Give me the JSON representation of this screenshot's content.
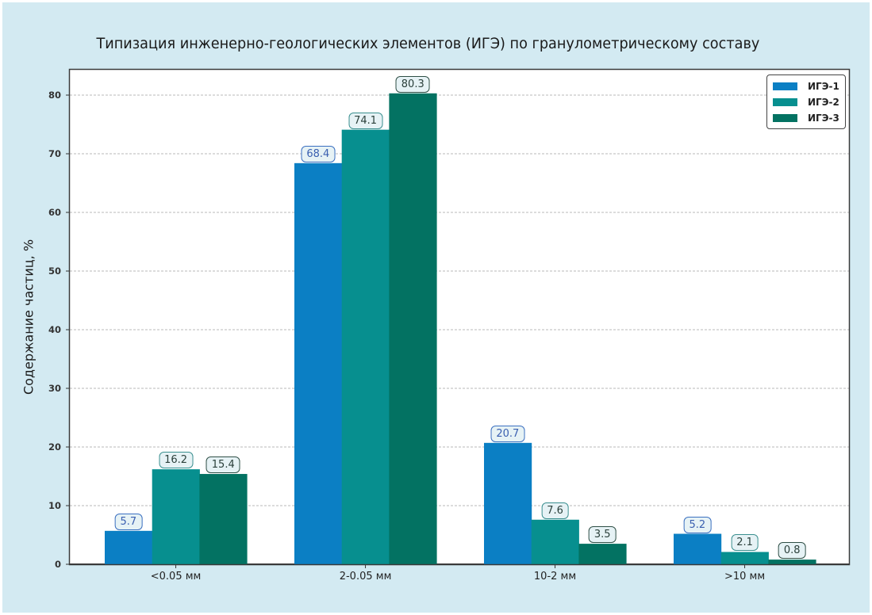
{
  "chart_data": {
    "type": "bar",
    "title": "Типизация инженерно-геологических элементов (ИГЭ) по гранулометрическому составу",
    "xlabel": "",
    "ylabel": "Содержание частиц, %",
    "ylim": [
      0,
      84
    ],
    "yticks": [
      0,
      10,
      20,
      30,
      40,
      50,
      60,
      70,
      80
    ],
    "grid": "horizontal-dashed",
    "legend_position": "upper right",
    "categories": [
      "<0.05 мм",
      "2-0.05 мм",
      "10-2 мм",
      ">10 мм"
    ],
    "series": [
      {
        "name": "ИГЭ-1",
        "color": "#0b7fc4",
        "values": [
          5.7,
          68.4,
          20.7,
          5.2
        ]
      },
      {
        "name": "ИГЭ-2",
        "color": "#078f8f",
        "values": [
          16.2,
          74.1,
          7.6,
          2.1
        ]
      },
      {
        "name": "ИГЭ-3",
        "color": "#037262",
        "values": [
          15.4,
          80.3,
          3.5,
          0.8
        ]
      }
    ],
    "value_labels": [
      [
        "5.7",
        "16.2",
        "15.4"
      ],
      [
        "68.4",
        "74.1",
        "80.3"
      ],
      [
        "20.7",
        "7.6",
        "3.5"
      ],
      [
        "5.2",
        "2.1",
        "0.8"
      ]
    ]
  },
  "colors": {
    "background": "#d3eaf2",
    "plot_background": "#ffffff",
    "label_blue_text": "#3a5fb0",
    "label_dark_text": "#2a3f3a"
  }
}
